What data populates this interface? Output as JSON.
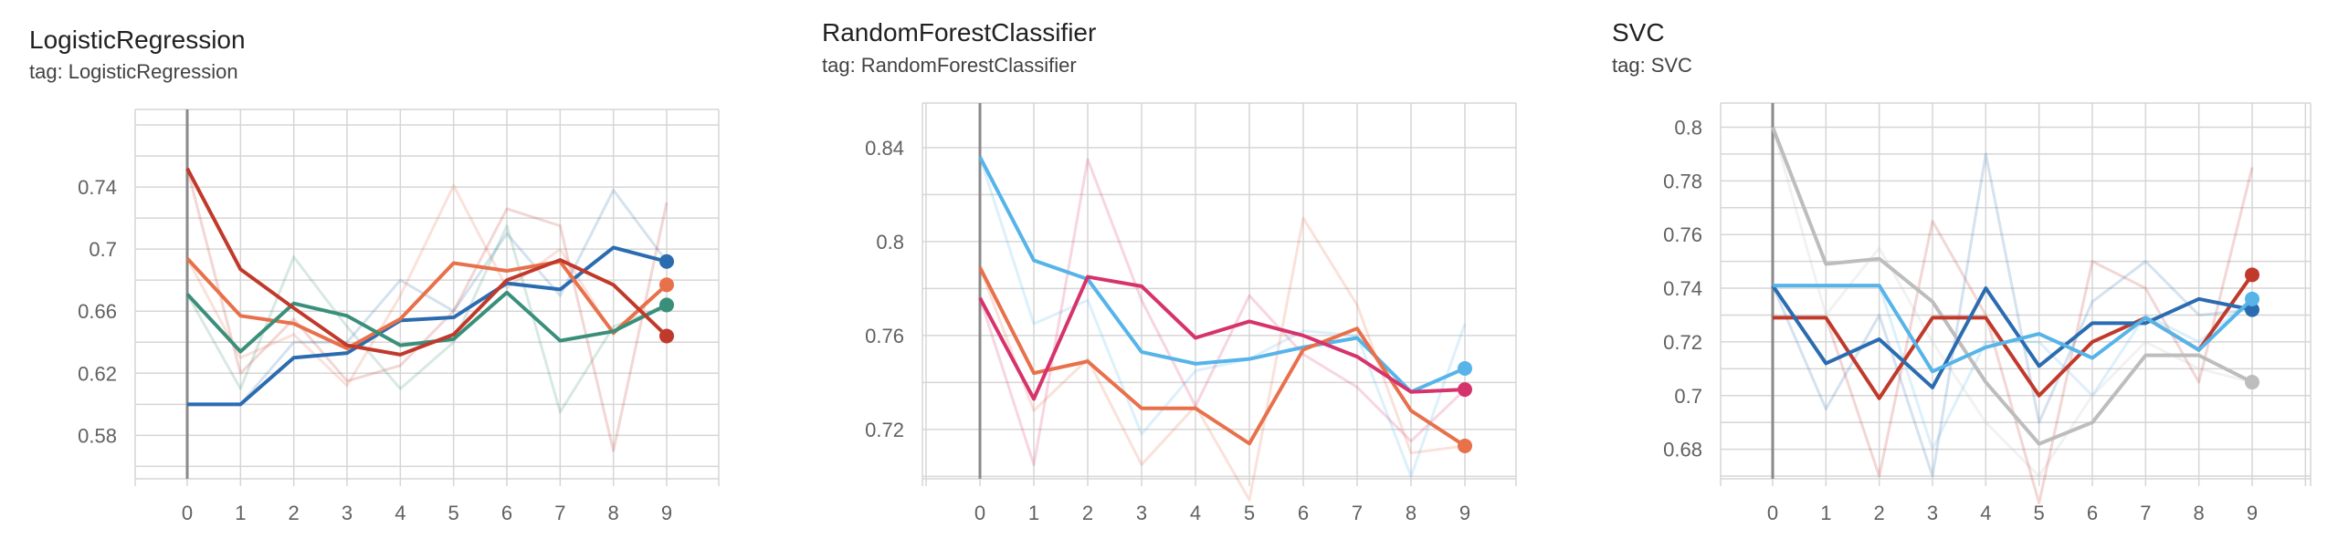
{
  "tag_prefix": "tag:",
  "chart_data": [
    {
      "type": "line",
      "title": "LogisticRegression",
      "tag": "LogisticRegression",
      "x": [
        0,
        1,
        2,
        3,
        4,
        5,
        6,
        7,
        8,
        9
      ],
      "ylim": [
        0.552,
        0.79
      ],
      "yticks": [
        0.58,
        0.62,
        0.66,
        0.7,
        0.74
      ],
      "ytick_labels": [
        "0.58",
        "0.62",
        "0.66",
        "0.7",
        "0.74"
      ],
      "grid": true,
      "series": [
        {
          "color": "#2b6cb0",
          "values": [
            0.6,
            0.6,
            0.63,
            0.633,
            0.654,
            0.656,
            0.678,
            0.674,
            0.701,
            0.692
          ],
          "raw": [
            0.6,
            0.6,
            0.64,
            0.64,
            0.68,
            0.66,
            0.71,
            0.67,
            0.738,
            0.692
          ]
        },
        {
          "color": "#e8704a",
          "values": [
            0.694,
            0.657,
            0.652,
            0.636,
            0.655,
            0.691,
            0.686,
            0.692,
            0.646,
            0.677
          ],
          "raw": [
            0.694,
            0.63,
            0.645,
            0.612,
            0.67,
            0.741,
            0.675,
            0.7,
            0.645,
            0.677
          ]
        },
        {
          "color": "#3a8f7a",
          "values": [
            0.671,
            0.634,
            0.665,
            0.657,
            0.638,
            0.642,
            0.672,
            0.641,
            0.647,
            0.664
          ],
          "raw": [
            0.671,
            0.61,
            0.695,
            0.65,
            0.61,
            0.64,
            0.715,
            0.595,
            0.65,
            0.664
          ]
        },
        {
          "color": "#c0392b",
          "values": [
            0.752,
            0.687,
            0.662,
            0.638,
            0.632,
            0.645,
            0.68,
            0.693,
            0.677,
            0.644
          ],
          "raw": [
            0.752,
            0.62,
            0.655,
            0.615,
            0.625,
            0.66,
            0.726,
            0.715,
            0.57,
            0.73
          ]
        }
      ]
    },
    {
      "type": "line",
      "title": "RandomForestClassifier",
      "tag": "RandomForestClassifier",
      "x": [
        0,
        1,
        2,
        3,
        4,
        5,
        6,
        7,
        8,
        9
      ],
      "ylim": [
        0.699,
        0.859
      ],
      "yticks": [
        0.72,
        0.76,
        0.8,
        0.84
      ],
      "ytick_labels": [
        "0.72",
        "0.76",
        "0.8",
        "0.84"
      ],
      "grid": true,
      "series": [
        {
          "color": "#56b4e9",
          "values": [
            0.836,
            0.792,
            0.784,
            0.753,
            0.748,
            0.75,
            0.755,
            0.759,
            0.736,
            0.746
          ],
          "raw": [
            0.836,
            0.765,
            0.775,
            0.718,
            0.745,
            0.75,
            0.762,
            0.76,
            0.7,
            0.765
          ]
        },
        {
          "color": "#e8704a",
          "values": [
            0.789,
            0.744,
            0.749,
            0.729,
            0.729,
            0.714,
            0.754,
            0.763,
            0.728,
            0.713
          ],
          "raw": [
            0.789,
            0.728,
            0.75,
            0.705,
            0.73,
            0.69,
            0.81,
            0.773,
            0.71,
            0.713
          ]
        },
        {
          "color": "#d6336c",
          "values": [
            0.776,
            0.733,
            0.785,
            0.781,
            0.759,
            0.766,
            0.76,
            0.751,
            0.736,
            0.737
          ],
          "raw": [
            0.776,
            0.705,
            0.835,
            0.775,
            0.73,
            0.777,
            0.752,
            0.738,
            0.715,
            0.737
          ]
        }
      ]
    },
    {
      "type": "line",
      "title": "SVC",
      "tag": "SVC",
      "x": [
        0,
        1,
        2,
        3,
        4,
        5,
        6,
        7,
        8,
        9
      ],
      "ylim": [
        0.669,
        0.809
      ],
      "yticks": [
        0.68,
        0.7,
        0.72,
        0.74,
        0.76,
        0.78,
        0.8
      ],
      "ytick_labels": [
        "0.68",
        "0.7",
        "0.72",
        "0.74",
        "0.76",
        "0.78",
        "0.8"
      ],
      "grid": true,
      "series": [
        {
          "color": "#bdbdbd",
          "values": [
            0.8,
            0.749,
            0.751,
            0.735,
            0.705,
            0.682,
            0.69,
            0.715,
            0.715,
            0.705
          ],
          "raw": [
            0.8,
            0.73,
            0.755,
            0.72,
            0.69,
            0.67,
            0.7,
            0.72,
            0.71,
            0.705
          ]
        },
        {
          "color": "#c0392b",
          "values": [
            0.729,
            0.729,
            0.699,
            0.729,
            0.729,
            0.7,
            0.72,
            0.729,
            0.717,
            0.745
          ],
          "raw": [
            0.729,
            0.729,
            0.67,
            0.765,
            0.73,
            0.66,
            0.75,
            0.74,
            0.705,
            0.785
          ]
        },
        {
          "color": "#2b6cb0",
          "values": [
            0.741,
            0.712,
            0.721,
            0.703,
            0.74,
            0.711,
            0.727,
            0.727,
            0.736,
            0.732
          ],
          "raw": [
            0.741,
            0.695,
            0.73,
            0.67,
            0.79,
            0.69,
            0.735,
            0.75,
            0.73,
            0.732
          ]
        },
        {
          "color": "#56b4e9",
          "values": [
            0.741,
            0.741,
            0.741,
            0.709,
            0.718,
            0.723,
            0.714,
            0.729,
            0.717,
            0.736
          ],
          "raw": [
            0.741,
            0.741,
            0.741,
            0.68,
            0.72,
            0.72,
            0.7,
            0.73,
            0.72,
            0.736
          ]
        }
      ]
    }
  ]
}
